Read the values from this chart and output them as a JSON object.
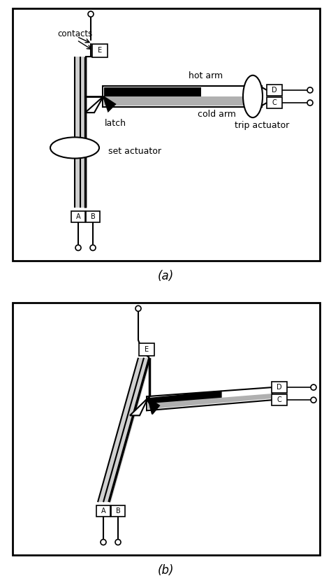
{
  "fig_width": 4.74,
  "fig_height": 8.34,
  "bg_color": "#ffffff",
  "diagram_a_label": "(a)",
  "diagram_b_label": "(b)",
  "contacts_label": "contacts",
  "hot_arm_label": "hot arm",
  "cold_arm_label": "cold arm",
  "latch_label": "latch",
  "set_actuator_label": "set actuator",
  "trip_actuator_label": "trip actuator"
}
